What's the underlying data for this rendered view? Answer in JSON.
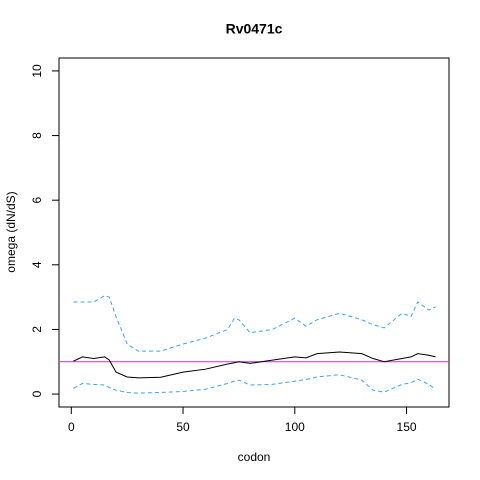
{
  "chart_data": {
    "type": "line",
    "title": "Rv0471c",
    "x_label": "codon",
    "y_label": "omega (dN/dS)",
    "x": [
      1,
      5,
      10,
      15,
      17,
      20,
      25,
      30,
      40,
      50,
      60,
      70,
      73,
      75,
      80,
      90,
      100,
      105,
      110,
      120,
      130,
      135,
      140,
      148,
      152,
      155,
      160,
      163
    ],
    "series": [
      {
        "color": "#000000",
        "dashed": false,
        "values": [
          1.02,
          1.15,
          1.1,
          1.15,
          1.05,
          0.68,
          0.53,
          0.5,
          0.52,
          0.68,
          0.77,
          0.93,
          0.97,
          1.0,
          0.95,
          1.05,
          1.15,
          1.12,
          1.25,
          1.3,
          1.25,
          1.1,
          1.0,
          1.1,
          1.15,
          1.25,
          1.2,
          1.15
        ]
      },
      {
        "color": "#3aa6e8",
        "dashed": true,
        "values": [
          2.85,
          2.85,
          2.85,
          3.05,
          3.0,
          2.4,
          1.55,
          1.33,
          1.33,
          1.55,
          1.73,
          2.0,
          2.35,
          2.3,
          1.9,
          2.0,
          2.35,
          2.1,
          2.3,
          2.5,
          2.3,
          2.15,
          2.05,
          2.5,
          2.4,
          2.85,
          2.6,
          2.7
        ]
      },
      {
        "color": "#3aa6e8",
        "dashed": true,
        "values": [
          0.18,
          0.33,
          0.3,
          0.28,
          0.2,
          0.12,
          0.05,
          0.03,
          0.05,
          0.08,
          0.15,
          0.33,
          0.4,
          0.43,
          0.28,
          0.3,
          0.4,
          0.45,
          0.53,
          0.6,
          0.43,
          0.12,
          0.06,
          0.3,
          0.35,
          0.46,
          0.3,
          0.15
        ]
      }
    ],
    "hline": {
      "value": 1,
      "color": "#cc33cc"
    },
    "xlim": [
      -5.5,
      169
    ],
    "ylim": [
      -0.4,
      10.4
    ],
    "xticks": [
      0,
      50,
      100,
      150
    ],
    "yticks": [
      0,
      2,
      4,
      6,
      8,
      10
    ]
  }
}
